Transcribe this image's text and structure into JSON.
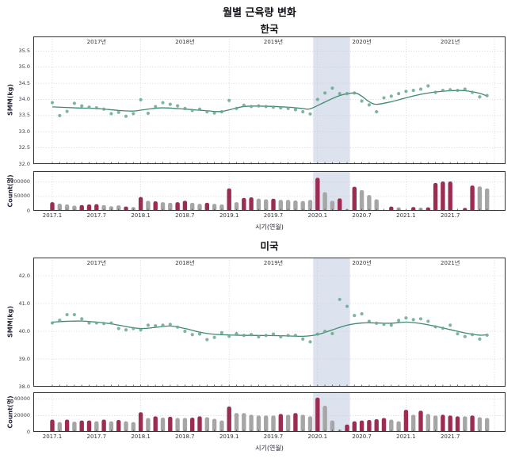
{
  "title": "월별 근육량 변화",
  "sections": [
    {
      "title": "한국"
    },
    {
      "title": "미국"
    }
  ],
  "x_axis": {
    "label": "시기(연월)",
    "tick_labels": [
      "2017.1",
      "2017.7",
      "2018.1",
      "2018.7",
      "2019.1",
      "2019.7",
      "2020.1",
      "2020.7",
      "2021.1",
      "2021.7"
    ],
    "tick_month_indices": [
      0,
      6,
      12,
      18,
      24,
      30,
      36,
      42,
      48,
      54
    ],
    "year_labels": [
      "2017년",
      "2018년",
      "2019년",
      "2020년",
      "2021년"
    ],
    "year_boundary_indices": [
      0,
      12,
      24,
      36,
      48,
      60
    ]
  },
  "highlight_band": {
    "from_month": "2019.12",
    "to_month": "2020.5",
    "i0": 35.4,
    "i1": 40.4
  },
  "colors": {
    "scatter": "#69a88e",
    "trend": "#3e8a6f",
    "bar_red": "#9c2c52",
    "bar_gray": "#a6a6a6",
    "band": "#dce3ee",
    "grid": "#c9c9c9",
    "spine": "#333333",
    "tick_text": "#3c3c46",
    "axis_text": "#262638"
  },
  "months": [
    "2017.1",
    "2017.2",
    "2017.3",
    "2017.4",
    "2017.5",
    "2017.6",
    "2017.7",
    "2017.8",
    "2017.9",
    "2017.10",
    "2017.11",
    "2017.12",
    "2018.1",
    "2018.2",
    "2018.3",
    "2018.4",
    "2018.5",
    "2018.6",
    "2018.7",
    "2018.8",
    "2018.9",
    "2018.10",
    "2018.11",
    "2018.12",
    "2019.1",
    "2019.2",
    "2019.3",
    "2019.4",
    "2019.5",
    "2019.6",
    "2019.7",
    "2019.8",
    "2019.9",
    "2019.10",
    "2019.11",
    "2019.12",
    "2020.1",
    "2020.2",
    "2020.3",
    "2020.4",
    "2020.5",
    "2020.6",
    "2020.7",
    "2020.8",
    "2020.9",
    "2020.10",
    "2020.11",
    "2020.12",
    "2021.1",
    "2021.2",
    "2021.3",
    "2021.4",
    "2021.5",
    "2021.6",
    "2021.7",
    "2021.8",
    "2021.9",
    "2021.10",
    "2021.11",
    "2021.12"
  ],
  "chart_data": [
    {
      "id": "korea_smm",
      "type": "scatter",
      "country": "한국",
      "ylabel": "SMM(kg)",
      "yticks": [
        32.0,
        32.5,
        33.0,
        33.5,
        34.0,
        34.5,
        35.0,
        35.5
      ],
      "tick_format": "dec1",
      "ylim": [
        32.0,
        35.95
      ],
      "values": [
        33.9,
        33.5,
        33.63,
        33.88,
        33.8,
        33.76,
        33.74,
        33.7,
        33.56,
        33.6,
        33.48,
        33.56,
        33.99,
        33.57,
        33.78,
        33.9,
        33.85,
        33.8,
        33.72,
        33.66,
        33.7,
        33.62,
        33.58,
        33.62,
        33.97,
        33.72,
        33.82,
        33.78,
        33.8,
        33.78,
        33.76,
        33.74,
        33.72,
        33.68,
        33.62,
        33.55,
        34.0,
        34.2,
        34.35,
        34.18,
        34.18,
        34.2,
        33.95,
        33.83,
        33.62,
        34.05,
        34.1,
        34.18,
        34.25,
        34.28,
        34.32,
        34.42,
        34.22,
        34.28,
        34.3,
        34.28,
        34.32,
        34.22,
        34.08,
        34.12
      ],
      "trend": [
        [
          0,
          33.77
        ],
        [
          3,
          33.74
        ],
        [
          6,
          33.72
        ],
        [
          9,
          33.66
        ],
        [
          11,
          33.64
        ],
        [
          13,
          33.7
        ],
        [
          15,
          33.74
        ],
        [
          18,
          33.7
        ],
        [
          21,
          33.65
        ],
        [
          23,
          33.63
        ],
        [
          26,
          33.78
        ],
        [
          29,
          33.79
        ],
        [
          32,
          33.76
        ],
        [
          34,
          33.72
        ],
        [
          35,
          33.71
        ],
        [
          37,
          33.92
        ],
        [
          39,
          34.12
        ],
        [
          41,
          34.2
        ],
        [
          42,
          34.1
        ],
        [
          43,
          33.93
        ],
        [
          44,
          33.85
        ],
        [
          46,
          33.93
        ],
        [
          48,
          34.05
        ],
        [
          50,
          34.16
        ],
        [
          52,
          34.23
        ],
        [
          54,
          34.27
        ],
        [
          56,
          34.27
        ],
        [
          58,
          34.19
        ],
        [
          59,
          34.1
        ]
      ]
    },
    {
      "id": "korea_count",
      "type": "bar",
      "country": "한국",
      "ylabel": "Count(명)",
      "yticks": [
        0,
        50000,
        100000
      ],
      "tick_format": "int",
      "ylim": [
        0,
        138000
      ],
      "values": [
        30000,
        25000,
        22000,
        18000,
        20000,
        22000,
        23000,
        20000,
        16000,
        19000,
        15000,
        13000,
        48000,
        35000,
        33000,
        30000,
        28000,
        30000,
        35000,
        28000,
        24000,
        28000,
        24000,
        22000,
        78000,
        30000,
        45000,
        47000,
        42000,
        40000,
        42000,
        38000,
        38000,
        36000,
        34000,
        38000,
        115000,
        65000,
        35000,
        43000,
        6000,
        84000,
        72000,
        55000,
        40000,
        2000,
        15000,
        12000,
        2000,
        13000,
        11000,
        12000,
        97000,
        102000,
        102000,
        2000,
        10000,
        88000,
        85000,
        78000
      ],
      "bar_color_pattern": "rgggrrrgggrgrgrggrrggrggrgrrggrgggggrggrgrggggrggrgrrrrgrrgg",
      "bar_color_legend": {
        "r": "#9c2c52",
        "g": "#a6a6a6"
      }
    },
    {
      "id": "usa_smm",
      "type": "scatter",
      "country": "미국",
      "ylabel": "SMM(kg)",
      "yticks": [
        38.0,
        39.0,
        40.0,
        41.0,
        42.0
      ],
      "tick_format": "dec1",
      "ylim": [
        38.0,
        42.66
      ],
      "values": [
        40.3,
        40.4,
        40.6,
        40.6,
        40.45,
        40.3,
        40.3,
        40.28,
        40.3,
        40.1,
        40.05,
        40.1,
        40.05,
        40.22,
        40.2,
        40.22,
        40.25,
        40.15,
        40.0,
        39.88,
        39.9,
        39.7,
        39.78,
        39.95,
        39.82,
        39.92,
        39.85,
        39.88,
        39.8,
        39.85,
        39.9,
        39.8,
        39.85,
        39.85,
        39.72,
        39.62,
        39.9,
        40.0,
        39.92,
        41.15,
        40.9,
        40.57,
        40.63,
        40.36,
        40.29,
        40.25,
        40.22,
        40.39,
        40.48,
        40.42,
        40.45,
        40.36,
        40.16,
        40.11,
        40.22,
        39.91,
        39.81,
        39.88,
        39.72,
        39.86
      ],
      "trend": [
        [
          0,
          40.33
        ],
        [
          2,
          40.36
        ],
        [
          4,
          40.37
        ],
        [
          6,
          40.33
        ],
        [
          8,
          40.27
        ],
        [
          10,
          40.17
        ],
        [
          12,
          40.1
        ],
        [
          14,
          40.14
        ],
        [
          16,
          40.19
        ],
        [
          18,
          40.1
        ],
        [
          20,
          39.97
        ],
        [
          22,
          39.89
        ],
        [
          25,
          39.86
        ],
        [
          28,
          39.85
        ],
        [
          31,
          39.84
        ],
        [
          34,
          39.82
        ],
        [
          36,
          39.88
        ],
        [
          38,
          40.05
        ],
        [
          40,
          40.22
        ],
        [
          42,
          40.3
        ],
        [
          44,
          40.3
        ],
        [
          46,
          40.29
        ],
        [
          48,
          40.33
        ],
        [
          50,
          40.28
        ],
        [
          52,
          40.18
        ],
        [
          54,
          40.06
        ],
        [
          56,
          39.94
        ],
        [
          58,
          39.86
        ],
        [
          59,
          39.88
        ]
      ]
    },
    {
      "id": "usa_count",
      "type": "bar",
      "country": "미국",
      "ylabel": "Count(명)",
      "yticks": [
        0,
        20000,
        40000
      ],
      "tick_format": "int",
      "ylim": [
        0,
        48500
      ],
      "values": [
        15000,
        12000,
        15000,
        12500,
        14000,
        14000,
        13000,
        15000,
        13000,
        14500,
        13000,
        12000,
        24000,
        17000,
        19000,
        17500,
        18500,
        17000,
        17000,
        17500,
        19000,
        18000,
        16000,
        14000,
        31000,
        23000,
        23000,
        21000,
        20000,
        20000,
        20000,
        22000,
        21000,
        23000,
        21000,
        19000,
        42000,
        32000,
        14000,
        3000,
        9000,
        13000,
        14000,
        14500,
        15500,
        17000,
        15000,
        13000,
        27000,
        21000,
        26000,
        22000,
        20000,
        21000,
        20000,
        19000,
        19000,
        20000,
        18000,
        17000
      ],
      "bar_color_pattern": "rgrgrrgrgrggrgrgrggrrgggrggggggrgrggrgggrrrrrrggrgrggrrrgrgg",
      "bar_color_legend": {
        "r": "#9c2c52",
        "g": "#a6a6a6"
      }
    }
  ]
}
